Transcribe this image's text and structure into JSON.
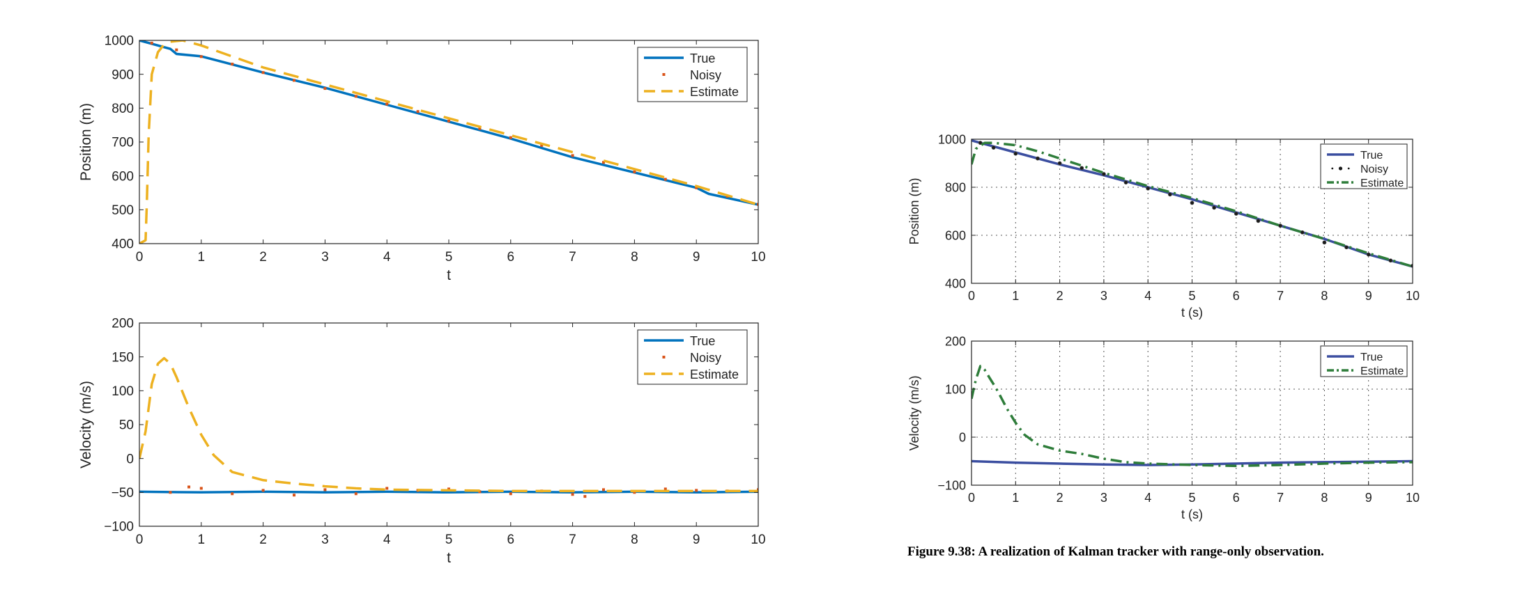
{
  "caption": "Figure 9.38:  A realization of Kalman tracker with range-only observation.",
  "colors": {
    "left_true": "#0072bd",
    "left_noisy": "#d95319",
    "left_estimate": "#edb120",
    "right_true": "#3b4ea0",
    "right_noisy": "#1a1a1a",
    "right_estimate": "#2e7d3a"
  },
  "chart_data": [
    {
      "type": "line",
      "xlabel": "t",
      "ylabel": "Position (m)",
      "xlim": [
        0,
        10
      ],
      "ylim": [
        400,
        1000
      ],
      "xticks": [
        0,
        1,
        2,
        3,
        4,
        5,
        6,
        7,
        8,
        9,
        10
      ],
      "yticks": [
        400,
        500,
        600,
        700,
        800,
        900,
        1000
      ],
      "grid": false,
      "legend": "top-right",
      "series": [
        {
          "name": "True",
          "style": "solid",
          "x": [
            0,
            0.5,
            0.6,
            1,
            2,
            3,
            4,
            5,
            6,
            7,
            8,
            9,
            9.2,
            10
          ],
          "y": [
            1000,
            975,
            960,
            953,
            905,
            860,
            810,
            760,
            710,
            655,
            610,
            565,
            547,
            515
          ]
        },
        {
          "name": "Noisy",
          "style": "dots",
          "x": [
            0.2,
            0.6,
            1,
            1.5,
            2,
            2.5,
            3,
            3.5,
            4,
            4.5,
            5,
            5.5,
            6,
            6.5,
            7,
            7.5,
            8,
            8.5,
            9,
            9.5,
            10
          ],
          "y": [
            992,
            972,
            952,
            930,
            905,
            882,
            858,
            835,
            812,
            790,
            762,
            740,
            713,
            690,
            660,
            640,
            612,
            590,
            565,
            540,
            516
          ]
        },
        {
          "name": "Estimate",
          "style": "dashed",
          "x": [
            0,
            0.1,
            0.12,
            0.15,
            0.2,
            0.3,
            0.4,
            0.5,
            0.7,
            1,
            2,
            3,
            4,
            5,
            6,
            7,
            8,
            9,
            10
          ],
          "y": [
            400,
            410,
            520,
            720,
            900,
            965,
            988,
            996,
            1000,
            985,
            920,
            870,
            820,
            770,
            720,
            670,
            620,
            570,
            515
          ]
        }
      ]
    },
    {
      "type": "line",
      "xlabel": "t",
      "ylabel": "Velocity (m/s)",
      "xlim": [
        0,
        10
      ],
      "ylim": [
        -100,
        200
      ],
      "xticks": [
        0,
        1,
        2,
        3,
        4,
        5,
        6,
        7,
        8,
        9,
        10
      ],
      "yticks": [
        -100,
        -50,
        0,
        50,
        100,
        150,
        200
      ],
      "grid": false,
      "legend": "top-right",
      "series": [
        {
          "name": "True",
          "style": "solid",
          "x": [
            0,
            1,
            2,
            3,
            4,
            5,
            6,
            7,
            8,
            9,
            10
          ],
          "y": [
            -49,
            -50,
            -49,
            -50,
            -49,
            -50,
            -49,
            -50,
            -49,
            -50,
            -49
          ]
        },
        {
          "name": "Noisy",
          "style": "dots",
          "x": [
            0.5,
            0.8,
            1,
            1.5,
            2,
            2.5,
            3,
            3.5,
            4,
            4.5,
            5,
            5.5,
            6,
            6.5,
            7,
            7.2,
            7.5,
            8,
            8.5,
            9,
            9.5,
            10
          ],
          "y": [
            -50,
            -42,
            -44,
            -52,
            -47,
            -54,
            -46,
            -52,
            -44,
            -47,
            -45,
            -49,
            -52,
            -48,
            -53,
            -56,
            -46,
            -50,
            -45,
            -47,
            -48,
            -46
          ]
        },
        {
          "name": "Estimate",
          "style": "dashed",
          "x": [
            0,
            0.1,
            0.2,
            0.3,
            0.4,
            0.5,
            0.6,
            0.8,
            1,
            1.2,
            1.5,
            2,
            2.5,
            3,
            3.5,
            4,
            5,
            6,
            7,
            8,
            9,
            10
          ],
          "y": [
            0,
            40,
            110,
            140,
            148,
            140,
            120,
            75,
            35,
            5,
            -20,
            -32,
            -37,
            -41,
            -44,
            -46,
            -47,
            -48,
            -48,
            -48,
            -48,
            -48
          ]
        }
      ]
    },
    {
      "type": "line",
      "xlabel": "t (s)",
      "ylabel": "Position (m)",
      "xlim": [
        0,
        10
      ],
      "ylim": [
        400,
        1000
      ],
      "xticks": [
        0,
        1,
        2,
        3,
        4,
        5,
        6,
        7,
        8,
        9,
        10
      ],
      "yticks": [
        400,
        600,
        800,
        1000
      ],
      "grid": true,
      "legend": "top-right",
      "series": [
        {
          "name": "True",
          "style": "solid",
          "x": [
            0,
            1,
            2,
            3,
            4,
            5,
            6,
            7,
            8,
            9,
            10
          ],
          "y": [
            995,
            945,
            895,
            850,
            800,
            750,
            695,
            640,
            585,
            520,
            470
          ]
        },
        {
          "name": "Noisy",
          "style": "dots",
          "x": [
            0.2,
            0.5,
            1,
            1.5,
            2,
            2.5,
            3,
            3.5,
            4,
            4.5,
            5,
            5.5,
            6,
            6.5,
            7,
            7.5,
            8,
            8.5,
            9,
            9.5,
            10
          ],
          "y": [
            985,
            965,
            940,
            920,
            900,
            880,
            855,
            820,
            795,
            770,
            735,
            715,
            690,
            660,
            640,
            612,
            570,
            550,
            520,
            495,
            473
          ]
        },
        {
          "name": "Estimate",
          "style": "dashdot",
          "x": [
            0,
            0.1,
            0.3,
            0.5,
            1,
            1.5,
            2,
            2.5,
            3,
            4,
            5,
            6,
            7,
            8,
            9,
            10
          ],
          "y": [
            895,
            960,
            985,
            985,
            975,
            950,
            920,
            890,
            860,
            805,
            755,
            700,
            640,
            585,
            525,
            470
          ]
        }
      ]
    },
    {
      "type": "line",
      "xlabel": "t (s)",
      "ylabel": "Velocity (m/s)",
      "xlim": [
        0,
        10
      ],
      "ylim": [
        -100,
        200
      ],
      "xticks": [
        0,
        1,
        2,
        3,
        4,
        5,
        6,
        7,
        8,
        9,
        10
      ],
      "yticks": [
        -100,
        0,
        100,
        200
      ],
      "grid": true,
      "legend": "top-right",
      "series": [
        {
          "name": "True",
          "style": "solid",
          "x": [
            0,
            1,
            2,
            3,
            4,
            5,
            6,
            7,
            8,
            9,
            10
          ],
          "y": [
            -50,
            -53,
            -55,
            -57,
            -58,
            -57,
            -55,
            -53,
            -52,
            -51,
            -50
          ]
        },
        {
          "name": "Estimate",
          "style": "dashdot",
          "x": [
            0,
            0.1,
            0.2,
            0.3,
            0.4,
            0.5,
            0.6,
            0.8,
            1,
            1.2,
            1.5,
            2,
            2.5,
            3,
            3.5,
            4,
            5,
            6,
            7,
            8,
            9,
            10
          ],
          "y": [
            80,
            120,
            148,
            140,
            125,
            110,
            95,
            60,
            30,
            5,
            -15,
            -28,
            -35,
            -45,
            -52,
            -55,
            -58,
            -60,
            -58,
            -55,
            -53,
            -52
          ]
        }
      ]
    }
  ]
}
